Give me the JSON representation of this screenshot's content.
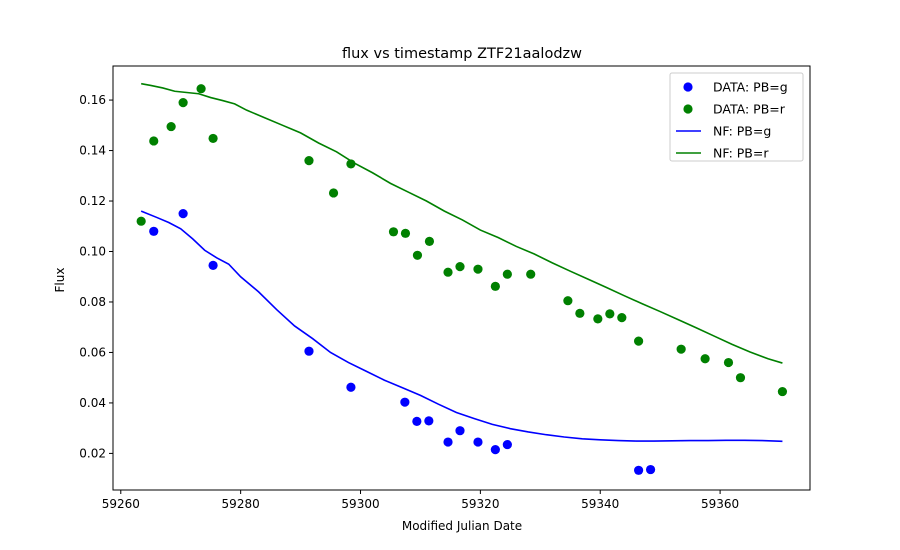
{
  "chart_data": {
    "type": "scatter",
    "title": "flux vs timestamp ZTF21aalodzw",
    "xlabel": "Modified Julian Date",
    "ylabel": "Flux",
    "xlim": [
      59258.7,
      59375.0
    ],
    "ylim": [
      0.0055,
      0.1735
    ],
    "xticks": [
      59260,
      59280,
      59300,
      59320,
      59340,
      59360
    ],
    "yticks": [
      0.02,
      0.04,
      0.06,
      0.08,
      0.1,
      0.12,
      0.14,
      0.16
    ],
    "xtick_labels": [
      "59260",
      "59280",
      "59300",
      "59320",
      "59340",
      "59360"
    ],
    "ytick_labels": [
      "0.02",
      "0.04",
      "0.06",
      "0.08",
      "0.10",
      "0.12",
      "0.14",
      "0.16"
    ],
    "grid": false,
    "legend_position": "top-right",
    "series": [
      {
        "name": "DATA: PB=g",
        "kind": "scatter",
        "color": "#0000ff",
        "points": [
          [
            59265.5,
            0.108
          ],
          [
            59270.4,
            0.115
          ],
          [
            59275.4,
            0.0945
          ],
          [
            59291.4,
            0.0605
          ],
          [
            59298.4,
            0.0462
          ],
          [
            59307.4,
            0.0403
          ],
          [
            59309.4,
            0.0327
          ],
          [
            59311.4,
            0.0329
          ],
          [
            59314.6,
            0.0245
          ],
          [
            59316.6,
            0.029
          ],
          [
            59319.6,
            0.0245
          ],
          [
            59322.5,
            0.0215
          ],
          [
            59324.5,
            0.0235
          ],
          [
            59346.4,
            0.0133
          ],
          [
            59348.4,
            0.0136
          ]
        ]
      },
      {
        "name": "DATA: PB=r",
        "kind": "scatter",
        "color": "#008000",
        "points": [
          [
            59263.4,
            0.112
          ],
          [
            59265.5,
            0.1438
          ],
          [
            59268.4,
            0.1495
          ],
          [
            59270.4,
            0.159
          ],
          [
            59273.4,
            0.1645
          ],
          [
            59275.4,
            0.1448
          ],
          [
            59291.4,
            0.136
          ],
          [
            59295.5,
            0.1232
          ],
          [
            59298.4,
            0.1347
          ],
          [
            59305.5,
            0.1078
          ],
          [
            59307.5,
            0.1072
          ],
          [
            59309.5,
            0.0985
          ],
          [
            59311.5,
            0.104
          ],
          [
            59314.6,
            0.0918
          ],
          [
            59316.6,
            0.094
          ],
          [
            59319.6,
            0.093
          ],
          [
            59322.5,
            0.0862
          ],
          [
            59324.5,
            0.091
          ],
          [
            59328.4,
            0.091
          ],
          [
            59334.6,
            0.0805
          ],
          [
            59336.6,
            0.0755
          ],
          [
            59339.6,
            0.0733
          ],
          [
            59341.6,
            0.0753
          ],
          [
            59343.6,
            0.0738
          ],
          [
            59346.4,
            0.0645
          ],
          [
            59353.5,
            0.0613
          ],
          [
            59357.5,
            0.0575
          ],
          [
            59361.4,
            0.056
          ],
          [
            59363.4,
            0.05
          ],
          [
            59370.4,
            0.0445
          ]
        ]
      },
      {
        "name": "NF: PB=g",
        "kind": "line",
        "color": "#0000ff",
        "points": [
          [
            59263.4,
            0.116
          ],
          [
            59266.0,
            0.1135
          ],
          [
            59268.0,
            0.1115
          ],
          [
            59270.0,
            0.109
          ],
          [
            59272.0,
            0.105
          ],
          [
            59274.0,
            0.1005
          ],
          [
            59276.0,
            0.0975
          ],
          [
            59278.0,
            0.095
          ],
          [
            59280.0,
            0.09
          ],
          [
            59283.0,
            0.084
          ],
          [
            59286.0,
            0.077
          ],
          [
            59289.0,
            0.0705
          ],
          [
            59292.0,
            0.0655
          ],
          [
            59295.0,
            0.06
          ],
          [
            59298.0,
            0.056
          ],
          [
            59301.0,
            0.0525
          ],
          [
            59304.0,
            0.049
          ],
          [
            59307.0,
            0.046
          ],
          [
            59310.0,
            0.043
          ],
          [
            59313.0,
            0.0395
          ],
          [
            59316.0,
            0.0362
          ],
          [
            59319.0,
            0.0338
          ],
          [
            59322.0,
            0.0315
          ],
          [
            59325.0,
            0.0298
          ],
          [
            59328.0,
            0.0285
          ],
          [
            59331.0,
            0.0274
          ],
          [
            59334.0,
            0.0265
          ],
          [
            59337.0,
            0.0258
          ],
          [
            59340.0,
            0.0254
          ],
          [
            59343.0,
            0.0251
          ],
          [
            59346.0,
            0.0249
          ],
          [
            59349.0,
            0.0249
          ],
          [
            59352.0,
            0.025
          ],
          [
            59355.0,
            0.0251
          ],
          [
            59358.0,
            0.0251
          ],
          [
            59361.0,
            0.0252
          ],
          [
            59364.0,
            0.0252
          ],
          [
            59367.0,
            0.0251
          ],
          [
            59370.4,
            0.0248
          ]
        ]
      },
      {
        "name": "NF: PB=r",
        "kind": "line",
        "color": "#008000",
        "points": [
          [
            59263.4,
            0.1665
          ],
          [
            59265.0,
            0.1658
          ],
          [
            59267.0,
            0.1648
          ],
          [
            59269.0,
            0.1635
          ],
          [
            59271.0,
            0.163
          ],
          [
            59273.0,
            0.1625
          ],
          [
            59275.0,
            0.161
          ],
          [
            59277.0,
            0.1598
          ],
          [
            59279.0,
            0.1585
          ],
          [
            59281.0,
            0.156
          ],
          [
            59284.0,
            0.153
          ],
          [
            59287.0,
            0.15
          ],
          [
            59290.0,
            0.147
          ],
          [
            59293.0,
            0.143
          ],
          [
            59296.0,
            0.1395
          ],
          [
            59299.0,
            0.135
          ],
          [
            59302.0,
            0.1312
          ],
          [
            59305.0,
            0.127
          ],
          [
            59308.0,
            0.1235
          ],
          [
            59311.0,
            0.12
          ],
          [
            59314.0,
            0.116
          ],
          [
            59317.0,
            0.1125
          ],
          [
            59320.0,
            0.1085
          ],
          [
            59323.0,
            0.1055
          ],
          [
            59326.0,
            0.102
          ],
          [
            59329.0,
            0.099
          ],
          [
            59332.0,
            0.0955
          ],
          [
            59335.0,
            0.0922
          ],
          [
            59338.0,
            0.089
          ],
          [
            59341.0,
            0.0858
          ],
          [
            59344.0,
            0.0825
          ],
          [
            59347.0,
            0.0793
          ],
          [
            59350.0,
            0.0762
          ],
          [
            59353.0,
            0.073
          ],
          [
            59356.0,
            0.0698
          ],
          [
            59359.0,
            0.0665
          ],
          [
            59362.0,
            0.0632
          ],
          [
            59365.0,
            0.0602
          ],
          [
            59368.0,
            0.0575
          ],
          [
            59370.4,
            0.0558
          ]
        ]
      }
    ]
  }
}
